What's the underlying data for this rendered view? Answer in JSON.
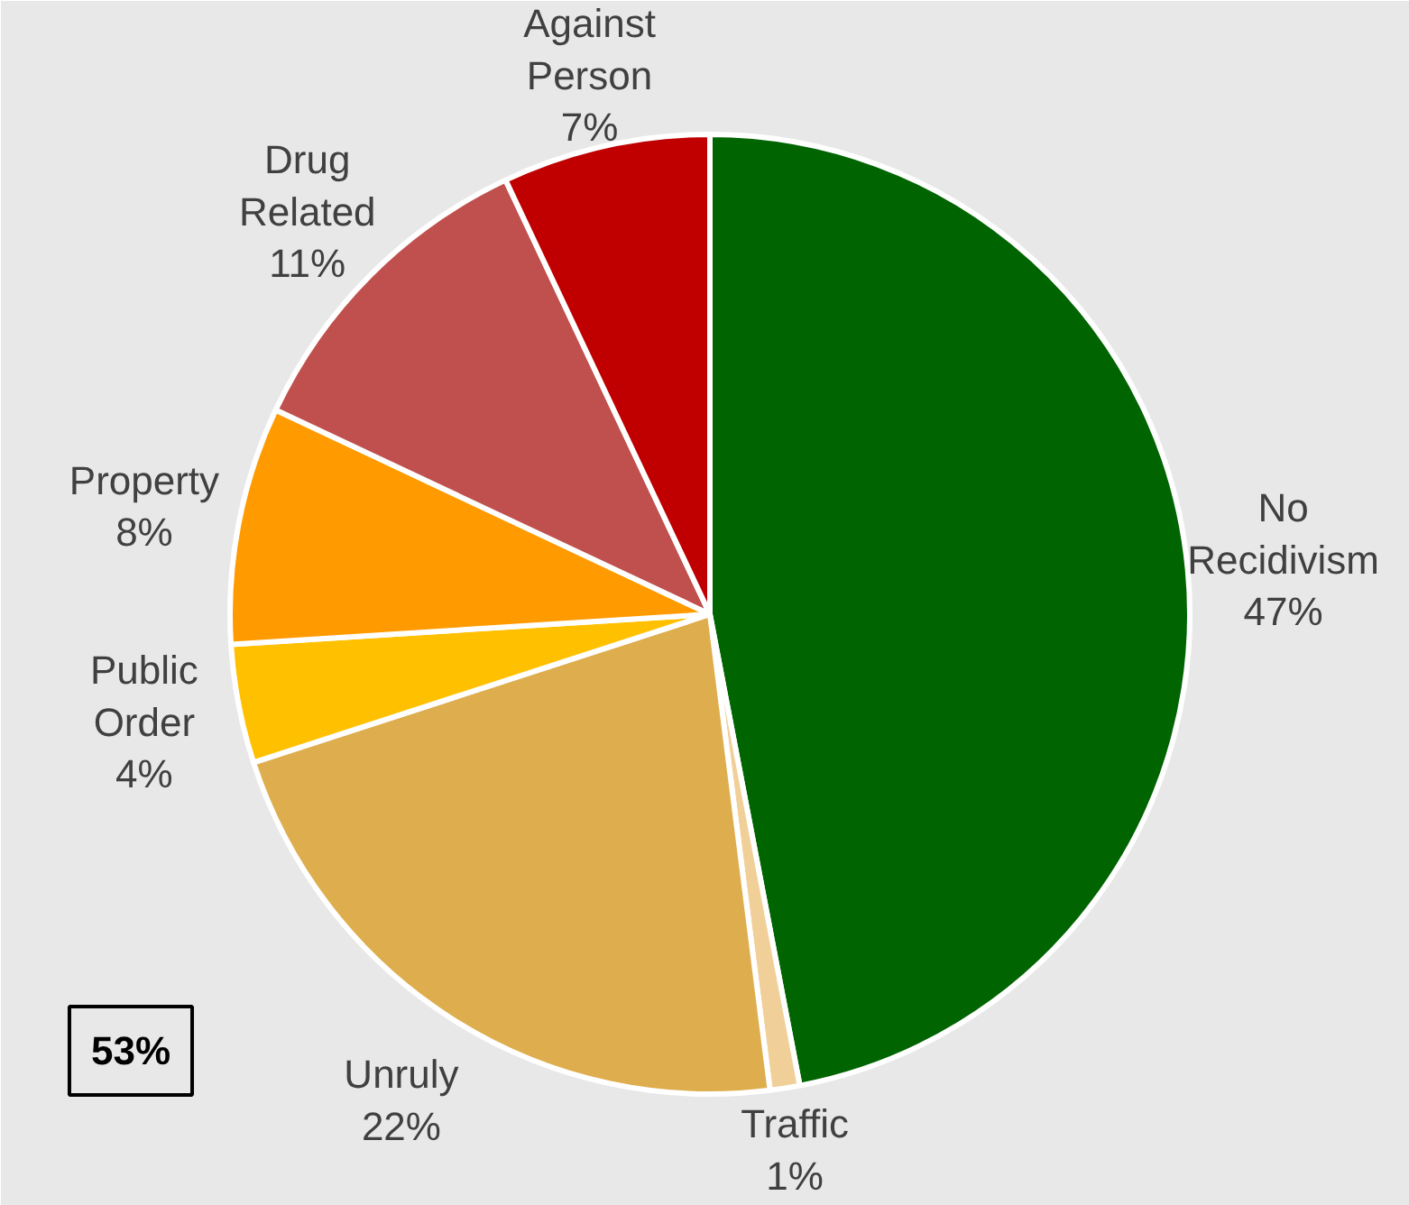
{
  "chart_data": {
    "type": "pie",
    "categories": [
      "No Recidivism",
      "Traffic",
      "Unruly",
      "Public Order",
      "Property",
      "Drug Related",
      "Against Person"
    ],
    "values": [
      47,
      1,
      22,
      4,
      8,
      11,
      7
    ],
    "value_labels": [
      "47%",
      "1%",
      "22%",
      "4%",
      "8%",
      "11%",
      "7%"
    ],
    "colors": [
      "#006400",
      "#f0d098",
      "#deae4e",
      "#ffc000",
      "#ff9a00",
      "#c0504d",
      "#c00000"
    ],
    "annotations": [
      "53%"
    ]
  }
}
